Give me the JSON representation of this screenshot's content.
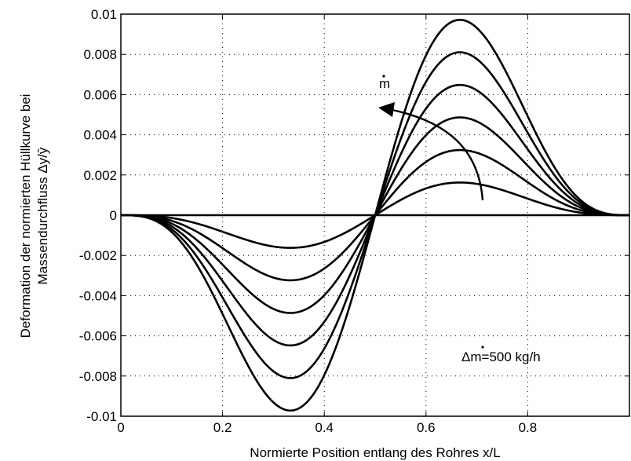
{
  "chart_data": {
    "type": "line",
    "title": "",
    "xlabel": "Normierte Position entlang des Rohres x/L",
    "ylabel_line1": "Deformation der normierten Hüllkurve bei",
    "ylabel_line2": "Massendurchfluss Δy/ŷ",
    "xlim": [
      0,
      1
    ],
    "ylim": [
      -0.01,
      0.01
    ],
    "x_ticks": [
      0,
      0.2,
      0.4,
      0.6,
      0.8
    ],
    "x_tick_labels": [
      "0",
      "0.2",
      "0.4",
      "0.6",
      "0.8"
    ],
    "y_ticks": [
      -0.01,
      -0.008,
      -0.006,
      -0.004,
      -0.002,
      0,
      0.002,
      0.004,
      0.006,
      0.008,
      0.01
    ],
    "y_tick_labels": [
      "-0.01",
      "-0.008",
      "-0.006",
      "-0.004",
      "-0.002",
      "0",
      "0.002",
      "0.004",
      "0.006",
      "0.008",
      "0.01"
    ],
    "grid": true,
    "line_color": "#000000",
    "curve_shape": "sin(pi*x)^2 * sin(2*pi*x) scaled; minima at x=0.283, maxima at x=0.717",
    "series": [
      {
        "peak_max": 0.0,
        "peak_min": 0.0
      },
      {
        "peak_max": 0.00148,
        "peak_min": -0.00148
      },
      {
        "peak_max": 0.00295,
        "peak_min": -0.00295
      },
      {
        "peak_max": 0.00443,
        "peak_min": -0.00443
      },
      {
        "peak_max": 0.0059,
        "peak_min": -0.0059
      },
      {
        "peak_max": 0.00738,
        "peak_min": -0.00738
      },
      {
        "peak_max": 0.00885,
        "peak_min": -0.00885
      }
    ],
    "annotations": {
      "mdot_label": "m",
      "delta_label": "Δm=500 kg/h"
    }
  }
}
